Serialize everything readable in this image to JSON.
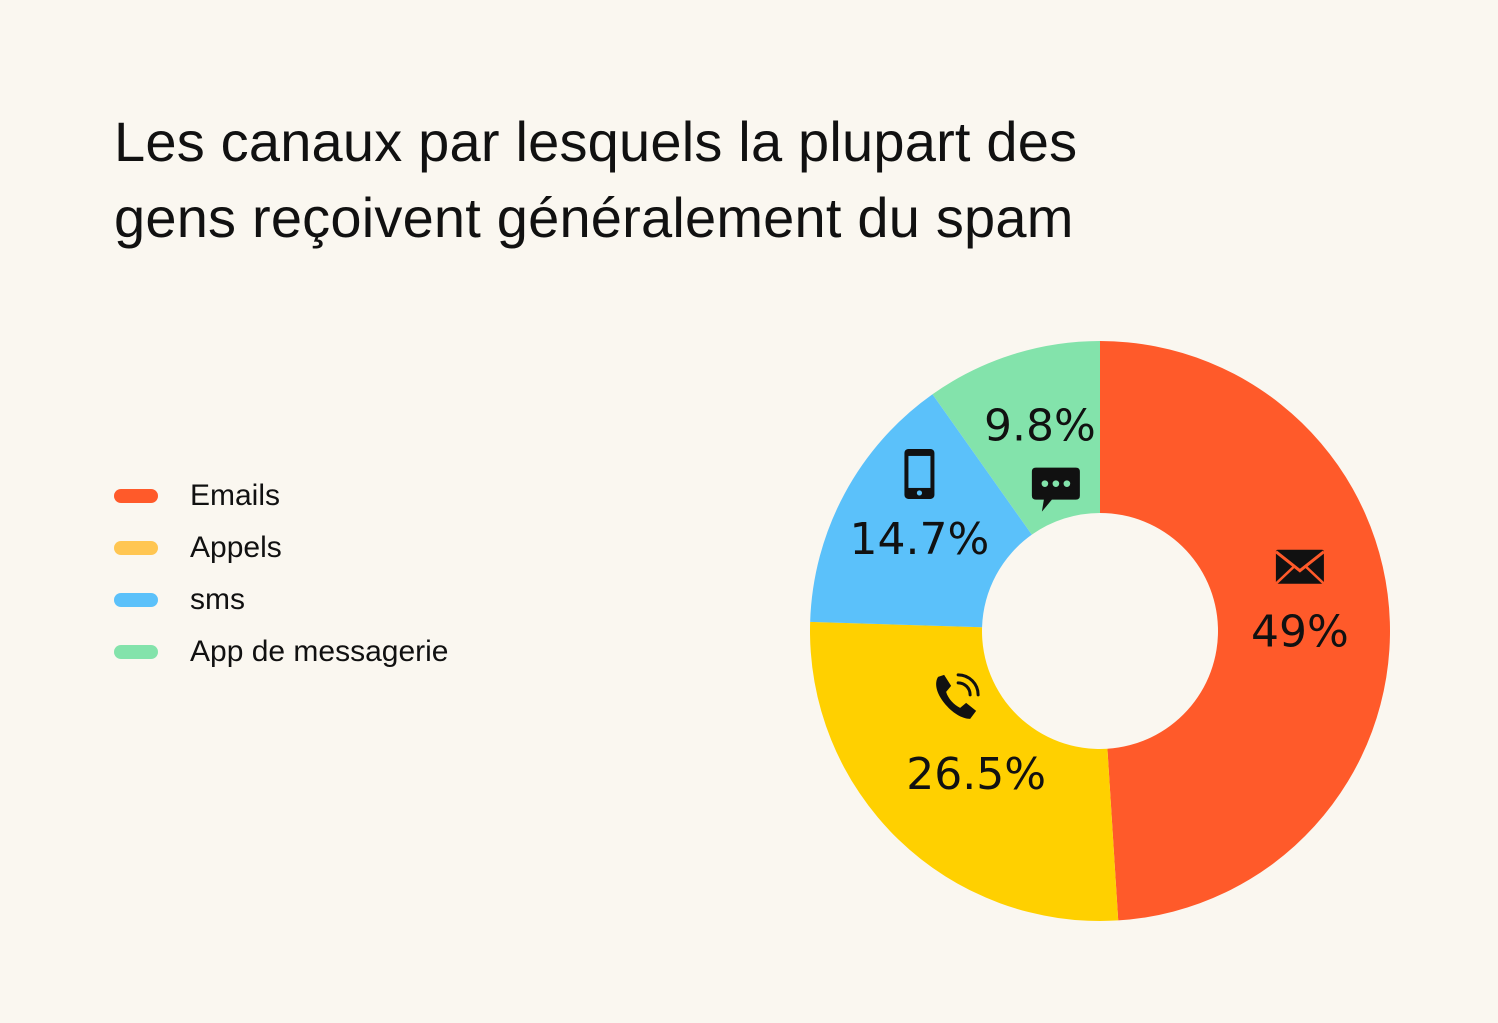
{
  "title": "Les canaux par lesquels la plupart des\ngens reçoivent généralement du spam",
  "chart_data": {
    "type": "pie",
    "donut": true,
    "legend_position": "left",
    "slices": [
      {
        "name": "Emails",
        "value": 49,
        "label": "49%",
        "color": "#ff5a2a",
        "icon": "envelope-icon"
      },
      {
        "name": "Appels",
        "value": 26.5,
        "label": "26.5%",
        "color": "#ffd000",
        "icon": "phone-icon"
      },
      {
        "name": "sms",
        "value": 14.7,
        "label": "14.7%",
        "color": "#5bc1fa",
        "icon": "mobile-phone-icon"
      },
      {
        "name": "App de messagerie",
        "value": 9.8,
        "label": "9.8%",
        "color": "#83e3ab",
        "icon": "chat-bubble-icon"
      }
    ]
  },
  "legend": {
    "items": [
      {
        "label": "Emails",
        "color": "#ff5a2a"
      },
      {
        "label": "Appels",
        "color": "#ffc652"
      },
      {
        "label": "sms",
        "color": "#5bc1fa"
      },
      {
        "label": "App de messagerie",
        "color": "#83e3ab"
      }
    ]
  }
}
